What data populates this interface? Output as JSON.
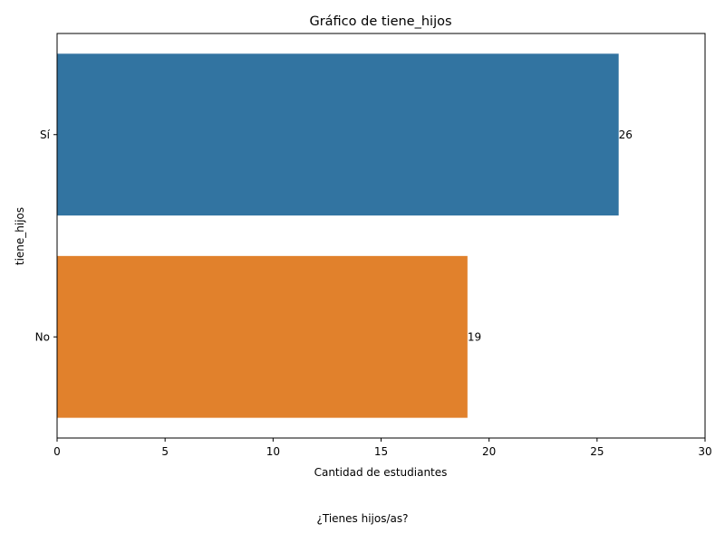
{
  "chart_data": {
    "type": "bar",
    "orientation": "horizontal",
    "title": "Gráfico de tiene_hijos",
    "xlabel": "Cantidad de estudiantes",
    "ylabel": "tiene_hijos",
    "categories": [
      "Sí",
      "No"
    ],
    "values": [
      26,
      19
    ],
    "value_labels": [
      "26",
      "19"
    ],
    "colors": [
      "#3274a1",
      "#e1812c"
    ],
    "xlim": [
      0,
      30
    ],
    "xticks": [
      0,
      5,
      10,
      15,
      20,
      25,
      30
    ],
    "grid": false,
    "legend": "none"
  },
  "caption": "¿Tienes hijos/as?"
}
